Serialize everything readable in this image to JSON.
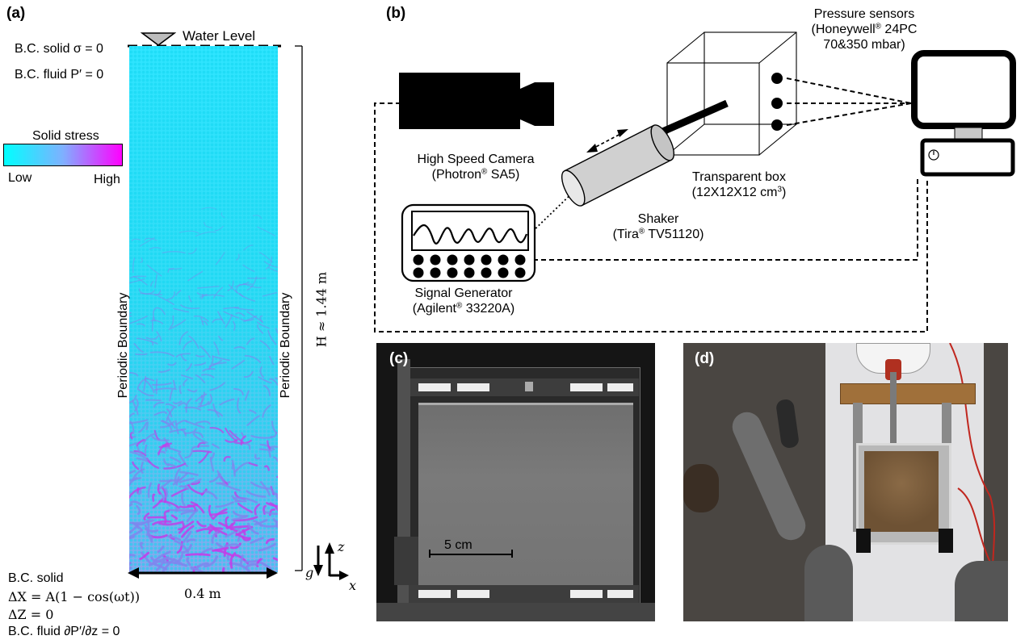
{
  "panels": {
    "a": "(a)",
    "b": "(b)",
    "c": "(c)",
    "d": "(d)"
  },
  "panel_a": {
    "bc_top_solid": "B.C. solid σ = 0",
    "bc_top_fluid": "B.C. fluid P′ = 0",
    "water_level": "Water Level",
    "colorbar_title": "Solid stress",
    "colorbar_low": "Low",
    "colorbar_high": "High",
    "colorbar_colors": [
      "#00ffff",
      "#ff00ff"
    ],
    "periodic_left": "Periodic Boundary",
    "periodic_right": "Periodic Boundary",
    "height_label": "H ≈ 1.44 m",
    "width_label": "0.4 m",
    "bc_bottom_solid": "B.C. solid",
    "bc_bottom_dx": "ΔX = A(1 − cos(ωt))",
    "bc_bottom_dz": "ΔZ = 0",
    "bc_bottom_fluid": "B.C. fluid ∂P′/∂z = 0",
    "axis_z": "z",
    "axis_x": "x",
    "axis_g": "g"
  },
  "panel_b": {
    "pressure_sensors_title": "Pressure sensors",
    "pressure_sensors_brand": "(Honeywell",
    "pressure_sensors_model": " 24PC",
    "pressure_sensors_range": "70&350 mbar)",
    "camera_title": "High Speed Camera",
    "camera_brand": "(Photron",
    "camera_model": " SA5)",
    "box_title": "Transparent box",
    "box_dims": "(12X12X12 cm",
    "box_dims_sup": "3",
    "box_dims_end": ")",
    "shaker_title": "Shaker",
    "shaker_brand": "(Tira",
    "shaker_model": " TV51120)",
    "generator_title": "Signal Generator",
    "generator_brand": "(Agilent",
    "generator_model": " 33220A)",
    "registered": "®"
  },
  "panel_c": {
    "scale_bar": "5 cm"
  }
}
